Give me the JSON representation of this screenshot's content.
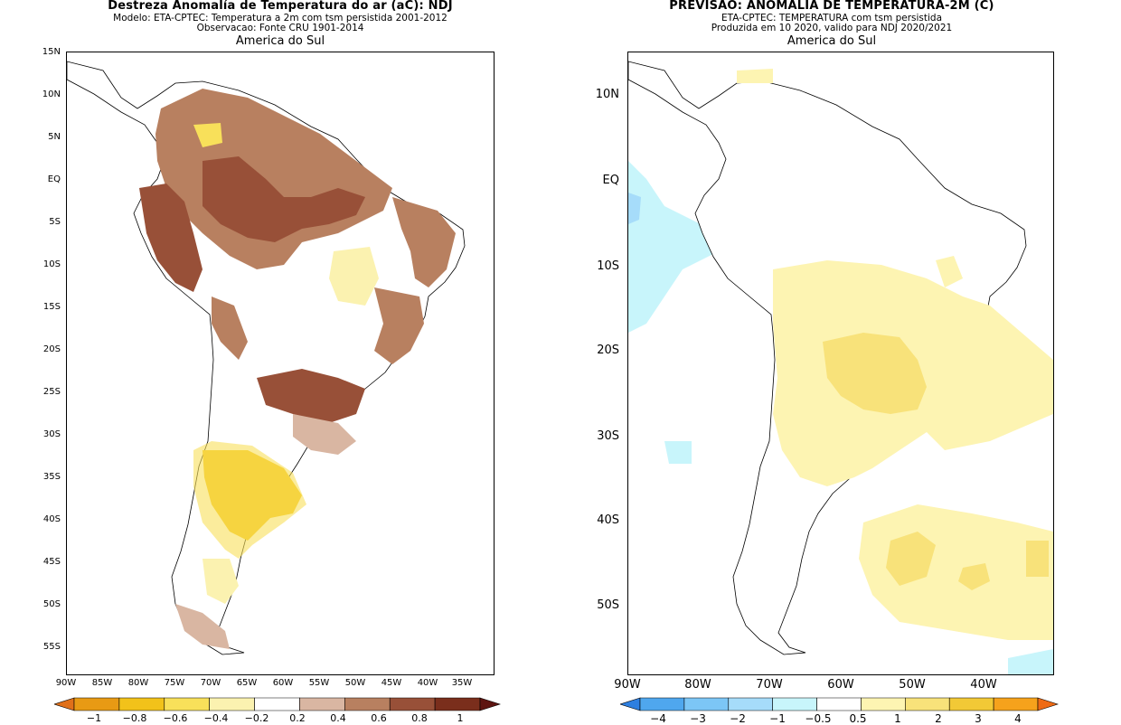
{
  "left": {
    "title": "Destreza Anomalía de Temperatura do ar (aC): NDJ",
    "subtitle1": "Modelo: ETA-CPTEC: Temperatura a 2m com tsm persistida 2001-2012",
    "subtitle2": "Observacao: Fonte CRU 1901-2014",
    "region": "America do Sul",
    "lat_labels": [
      "15N",
      "10N",
      "5N",
      "EQ",
      "5S",
      "10S",
      "15S",
      "20S",
      "25S",
      "30S",
      "35S",
      "40S",
      "45S",
      "50S",
      "55S"
    ],
    "lon_labels": [
      "90W",
      "85W",
      "80W",
      "75W",
      "70W",
      "65W",
      "60W",
      "55W",
      "50W",
      "45W",
      "40W",
      "35W"
    ],
    "colorbar": {
      "labels": [
        "−1",
        "−0.8",
        "−0.6",
        "−0.4",
        "−0.2",
        "0.2",
        "0.4",
        "0.6",
        "0.8",
        "1"
      ],
      "colors": [
        "#e0701a",
        "#e89a14",
        "#f2c21a",
        "#f8e05a",
        "#fbf2b0",
        "#ffffff",
        "#d9b6a2",
        "#b88060",
        "#985038",
        "#7a2e1c",
        "#5e1410"
      ]
    }
  },
  "right": {
    "title": "PREVISAO: ANOMALIA DE TEMPERATURA-2M (C)",
    "subtitle1": "ETA-CPTEC: TEMPERATURA com tsm persistida",
    "subtitle2": "Produzida em 10 2020, valido para NDJ 2020/2021",
    "region": "America do Sul",
    "lat_labels": [
      "10N",
      "EQ",
      "10S",
      "20S",
      "30S",
      "40S",
      "50S"
    ],
    "lon_labels": [
      "90W",
      "80W",
      "70W",
      "60W",
      "50W",
      "40W"
    ],
    "colorbar": {
      "labels": [
        "−4",
        "−3",
        "−2",
        "−1",
        "−0.5",
        "0.5",
        "1",
        "2",
        "3",
        "4"
      ],
      "colors": [
        "#2e7fe0",
        "#4fa7ee",
        "#7cc6f6",
        "#a6dcfa",
        "#c8f5fb",
        "#ffffff",
        "#fdf4b2",
        "#f8e27a",
        "#f2c936",
        "#f6a21c",
        "#ee6a14"
      ]
    }
  }
}
